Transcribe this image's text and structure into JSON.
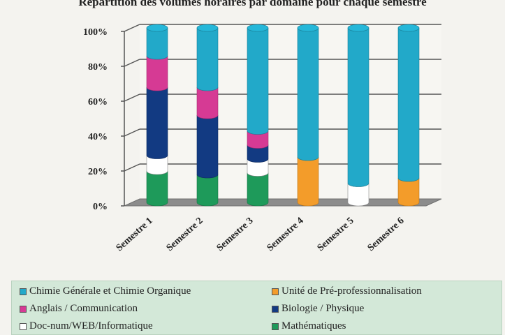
{
  "chart_data": {
    "type": "bar",
    "stacked": true,
    "percent": true,
    "title": "Répartition des volumes horaires par domaine pour chaque semestre",
    "categories": [
      "Semestre 1",
      "Semestre 2",
      "Semestre 3",
      "Semestre 4",
      "Semestre 5",
      "Semestre 6"
    ],
    "ylim": [
      0,
      100
    ],
    "yticks": [
      "0%",
      "20%",
      "40%",
      "60%",
      "80%",
      "100%"
    ],
    "grid": true,
    "legend": "bottom",
    "series": [
      {
        "name": "Mathématiques",
        "color": "#1e9a5a",
        "values": [
          18,
          16,
          17,
          0,
          0,
          0
        ]
      },
      {
        "name": "Doc-num/WEB/Informatique",
        "color": "#ffffff",
        "values": [
          9,
          0,
          8,
          0,
          11,
          0
        ]
      },
      {
        "name": "Biologie / Physique",
        "color": "#123a82",
        "values": [
          39,
          34,
          8,
          0,
          0,
          0
        ]
      },
      {
        "name": "Anglais / Communication",
        "color": "#d63a94",
        "values": [
          18,
          16,
          8,
          0,
          0,
          0
        ]
      },
      {
        "name": "Unité de Pré-professionnalisation",
        "color": "#f39c2a",
        "values": [
          0,
          0,
          0,
          26,
          0,
          14
        ]
      },
      {
        "name": "Chimie Générale et Chimie Organique",
        "color": "#22a9c9",
        "values": [
          16,
          34,
          59,
          74,
          89,
          86
        ]
      }
    ]
  },
  "legend_order": [
    5,
    4,
    3,
    2,
    1,
    0
  ]
}
